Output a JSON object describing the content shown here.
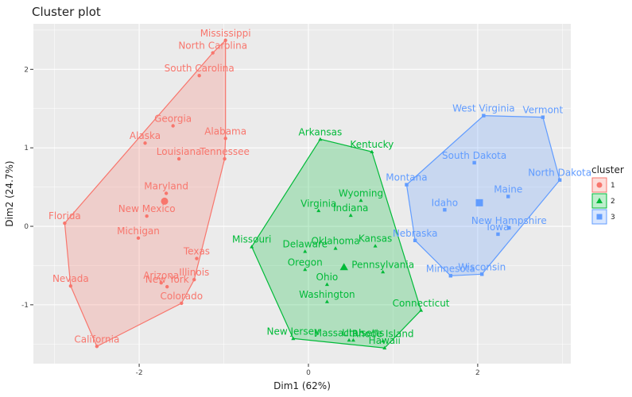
{
  "chart_data": {
    "type": "scatter",
    "title": "Cluster plot",
    "xlabel": "Dim1 (62%)",
    "ylabel": "Dim2 (24.7%)",
    "xlim": [
      -3.25,
      3.1
    ],
    "ylim": [
      -1.75,
      2.58
    ],
    "x_ticks": [
      -2,
      0,
      2
    ],
    "y_ticks": [
      -1,
      0,
      1,
      2
    ],
    "grid": true,
    "legend": {
      "title": "cluster",
      "position": "right",
      "entries": [
        "1",
        "2",
        "3"
      ]
    },
    "colors": {
      "1": "#F8766D",
      "2": "#00BA38",
      "3": "#619CFF"
    },
    "centroids": [
      {
        "cluster": "1",
        "x": -1.7,
        "y": 0.32
      },
      {
        "cluster": "2",
        "x": 0.42,
        "y": -0.52
      },
      {
        "cluster": "3",
        "x": 2.02,
        "y": 0.3
      }
    ],
    "series": [
      {
        "cluster": "1",
        "points": [
          {
            "label": "Mississippi",
            "x": -0.98,
            "y": 2.37
          },
          {
            "label": "North Carolina",
            "x": -1.13,
            "y": 2.21
          },
          {
            "label": "South Carolina",
            "x": -1.29,
            "y": 1.92
          },
          {
            "label": "Georgia",
            "x": -1.6,
            "y": 1.28
          },
          {
            "label": "Alabama",
            "x": -0.98,
            "y": 1.12
          },
          {
            "label": "Alaska",
            "x": -1.93,
            "y": 1.06
          },
          {
            "label": "Louisiana",
            "x": -1.53,
            "y": 0.86
          },
          {
            "label": "Tennessee",
            "x": -0.99,
            "y": 0.86
          },
          {
            "label": "Maryland",
            "x": -1.68,
            "y": 0.42
          },
          {
            "label": "New Mexico",
            "x": -1.91,
            "y": 0.13
          },
          {
            "label": "Florida",
            "x": -2.88,
            "y": 0.04
          },
          {
            "label": "Michigan",
            "x": -2.01,
            "y": -0.15
          },
          {
            "label": "Texas",
            "x": -1.32,
            "y": -0.41
          },
          {
            "label": "Illinois",
            "x": -1.35,
            "y": -0.68
          },
          {
            "label": "Arizona",
            "x": -1.74,
            "y": -0.72
          },
          {
            "label": "New York",
            "x": -1.67,
            "y": -0.77
          },
          {
            "label": "Nevada",
            "x": -2.81,
            "y": -0.76
          },
          {
            "label": "Colorado",
            "x": -1.5,
            "y": -0.98
          },
          {
            "label": "California",
            "x": -2.5,
            "y": -1.53
          }
        ]
      },
      {
        "cluster": "2",
        "points": [
          {
            "label": "Arkansas",
            "x": 0.14,
            "y": 1.11
          },
          {
            "label": "Kentucky",
            "x": 0.75,
            "y": 0.95
          },
          {
            "label": "Wyoming",
            "x": 0.62,
            "y": 0.33
          },
          {
            "label": "Virginia",
            "x": 0.12,
            "y": 0.2
          },
          {
            "label": "Indiana",
            "x": 0.5,
            "y": 0.14
          },
          {
            "label": "Kansas",
            "x": 0.79,
            "y": -0.25
          },
          {
            "label": "Oklahoma",
            "x": 0.32,
            "y": -0.28
          },
          {
            "label": "Delaware",
            "x": -0.04,
            "y": -0.32
          },
          {
            "label": "Missouri",
            "x": -0.67,
            "y": -0.26
          },
          {
            "label": "Oregon",
            "x": -0.04,
            "y": -0.55
          },
          {
            "label": "Pennsylvania",
            "x": 0.88,
            "y": -0.58
          },
          {
            "label": "Ohio",
            "x": 0.22,
            "y": -0.74
          },
          {
            "label": "Washington",
            "x": 0.22,
            "y": -0.96
          },
          {
            "label": "Connecticut",
            "x": 1.33,
            "y": -1.07
          },
          {
            "label": "New Jersey",
            "x": -0.18,
            "y": -1.43
          },
          {
            "label": "Massachusetts",
            "x": 0.48,
            "y": -1.45
          },
          {
            "label": "Utah",
            "x": 0.53,
            "y": -1.45
          },
          {
            "label": "Rhode Island",
            "x": 0.88,
            "y": -1.46
          },
          {
            "label": "Hawaii",
            "x": 0.9,
            "y": -1.55
          }
        ]
      },
      {
        "cluster": "3",
        "points": [
          {
            "label": "West Virginia",
            "x": 2.07,
            "y": 1.41
          },
          {
            "label": "Vermont",
            "x": 2.77,
            "y": 1.39
          },
          {
            "label": "South Dakota",
            "x": 1.96,
            "y": 0.81
          },
          {
            "label": "Montana",
            "x": 1.16,
            "y": 0.53
          },
          {
            "label": "North Dakota",
            "x": 2.97,
            "y": 0.59
          },
          {
            "label": "Maine",
            "x": 2.36,
            "y": 0.38
          },
          {
            "label": "Idaho",
            "x": 1.61,
            "y": 0.21
          },
          {
            "label": "New Hampshire",
            "x": 2.37,
            "y": -0.02
          },
          {
            "label": "Iowa",
            "x": 2.24,
            "y": -0.1
          },
          {
            "label": "Nebraska",
            "x": 1.26,
            "y": -0.18
          },
          {
            "label": "Minnesota",
            "x": 1.68,
            "y": -0.63
          },
          {
            "label": "Wisconsin",
            "x": 2.05,
            "y": -0.61
          }
        ]
      }
    ]
  }
}
